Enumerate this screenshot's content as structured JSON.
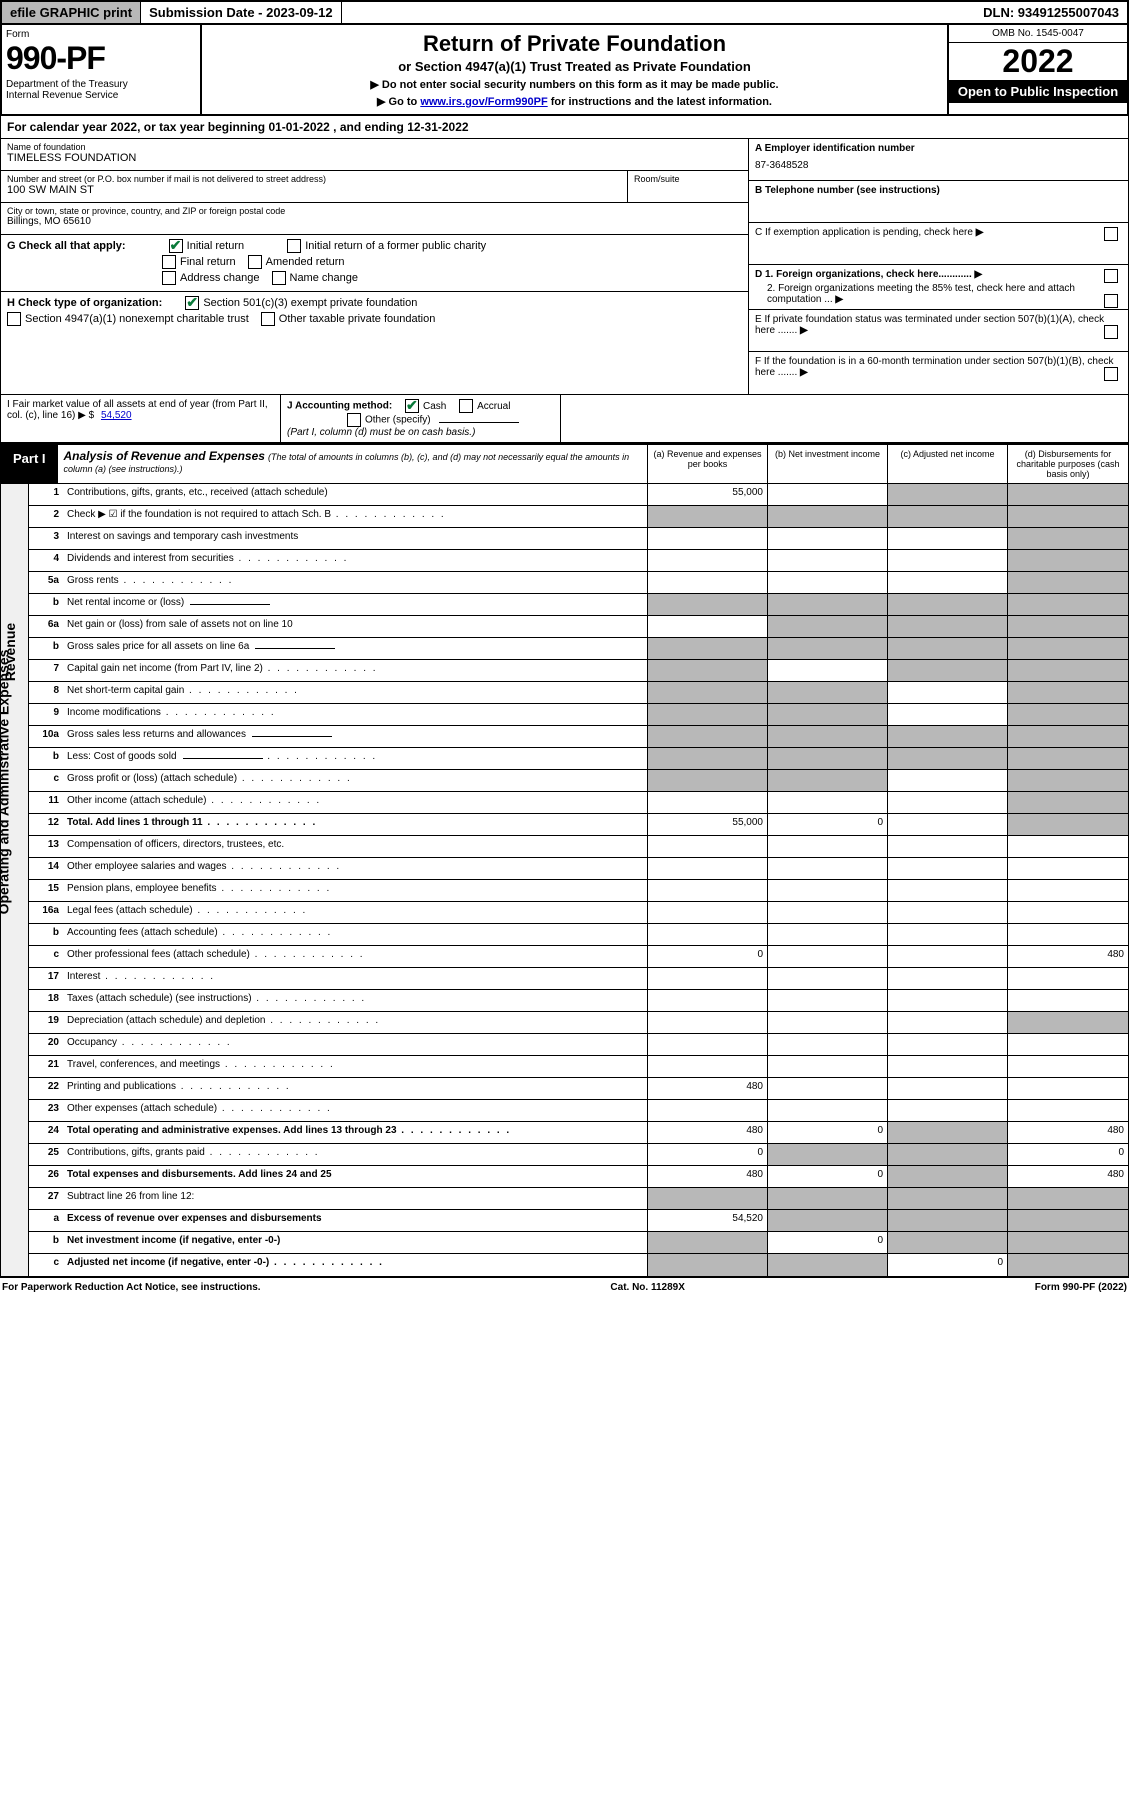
{
  "topbar": {
    "efile": "efile GRAPHIC print",
    "submission": "Submission Date - 2023-09-12",
    "dln": "DLN: 93491255007043"
  },
  "header": {
    "form_label": "Form",
    "form_number": "990-PF",
    "dept": "Department of the Treasury\nInternal Revenue Service",
    "title": "Return of Private Foundation",
    "subtitle": "or Section 4947(a)(1) Trust Treated as Private Foundation",
    "instr1": "▶ Do not enter social security numbers on this form as it may be made public.",
    "instr2_pre": "▶ Go to ",
    "instr2_link": "www.irs.gov/Form990PF",
    "instr2_post": " for instructions and the latest information.",
    "omb": "OMB No. 1545-0047",
    "year": "2022",
    "open_pub": "Open to Public Inspection"
  },
  "cal_year": {
    "pre": "For calendar year 2022, or tax year beginning ",
    "begin": "01-01-2022",
    "mid": " , and ending ",
    "end": "12-31-2022"
  },
  "info": {
    "name_label": "Name of foundation",
    "name": "TIMELESS FOUNDATION",
    "addr_label": "Number and street (or P.O. box number if mail is not delivered to street address)",
    "addr": "100 SW MAIN ST",
    "room_label": "Room/suite",
    "city_label": "City or town, state or province, country, and ZIP or foreign postal code",
    "city": "Billings, MO  65610",
    "A_label": "A Employer identification number",
    "A_val": "87-3648528",
    "B_label": "B Telephone number (see instructions)",
    "C_label": "C If exemption application is pending, check here",
    "D1_label": "D 1. Foreign organizations, check here............",
    "D2_label": "2. Foreign organizations meeting the 85% test, check here and attach computation ...",
    "E_label": "E  If private foundation status was terminated under section 507(b)(1)(A), check here .......",
    "F_label": "F  If the foundation is in a 60-month termination under section 507(b)(1)(B), check here .......",
    "G_label": "G Check all that apply:",
    "G_opts": [
      "Initial return",
      "Initial return of a former public charity",
      "Final return",
      "Amended return",
      "Address change",
      "Name change"
    ],
    "H_label": "H Check type of organization:",
    "H_opts": [
      "Section 501(c)(3) exempt private foundation",
      "Section 4947(a)(1) nonexempt charitable trust",
      "Other taxable private foundation"
    ],
    "I_label": "I Fair market value of all assets at end of year (from Part II, col. (c), line 16) ▶ $",
    "I_val": "54,520",
    "J_label": "J Accounting method:",
    "J_opts": [
      "Cash",
      "Accrual",
      "Other (specify)"
    ],
    "J_note": "(Part I, column (d) must be on cash basis.)"
  },
  "part1": {
    "label": "Part I",
    "title": "Analysis of Revenue and Expenses",
    "sub": "(The total of amounts in columns (b), (c), and (d) may not necessarily equal the amounts in column (a) (see instructions).)",
    "col_a": "(a) Revenue and expenses per books",
    "col_b": "(b) Net investment income",
    "col_c": "(c) Adjusted net income",
    "col_d": "(d) Disbursements for charitable purposes (cash basis only)"
  },
  "rows": [
    {
      "n": "1",
      "d": "Contributions, gifts, grants, etc., received (attach schedule)",
      "a": "55,000",
      "sh": [
        "",
        "",
        "c",
        "d"
      ]
    },
    {
      "n": "2",
      "d": "Check ▶ ☑ if the foundation is not required to attach Sch. B",
      "dots": true,
      "sh": [
        "a",
        "b",
        "c",
        "d"
      ],
      "allshade": true
    },
    {
      "n": "3",
      "d": "Interest on savings and temporary cash investments",
      "sh": [
        "",
        "",
        "",
        "d"
      ]
    },
    {
      "n": "4",
      "d": "Dividends and interest from securities",
      "dots": true,
      "sh": [
        "",
        "",
        "",
        "d"
      ]
    },
    {
      "n": "5a",
      "d": "Gross rents",
      "dots": true,
      "sh": [
        "",
        "",
        "",
        "d"
      ]
    },
    {
      "n": "b",
      "d": "Net rental income or (loss)",
      "sub": true,
      "sh": [
        "a",
        "b",
        "c",
        "d"
      ],
      "allshade": true
    },
    {
      "n": "6a",
      "d": "Net gain or (loss) from sale of assets not on line 10",
      "sh": [
        "",
        "b",
        "c",
        "d"
      ]
    },
    {
      "n": "b",
      "d": "Gross sales price for all assets on line 6a",
      "sub": true,
      "sh": [
        "a",
        "b",
        "c",
        "d"
      ],
      "allshade": true
    },
    {
      "n": "7",
      "d": "Capital gain net income (from Part IV, line 2)",
      "dots": true,
      "sh": [
        "a",
        "",
        "c",
        "d"
      ]
    },
    {
      "n": "8",
      "d": "Net short-term capital gain",
      "dots": true,
      "sh": [
        "a",
        "b",
        "",
        "d"
      ]
    },
    {
      "n": "9",
      "d": "Income modifications",
      "dots": true,
      "sh": [
        "a",
        "b",
        "",
        "d"
      ]
    },
    {
      "n": "10a",
      "d": "Gross sales less returns and allowances",
      "sub": true,
      "sh": [
        "a",
        "b",
        "c",
        "d"
      ],
      "allshade": true
    },
    {
      "n": "b",
      "d": "Less: Cost of goods sold",
      "dots": true,
      "sub": true,
      "sh": [
        "a",
        "b",
        "c",
        "d"
      ],
      "allshade": true
    },
    {
      "n": "c",
      "d": "Gross profit or (loss) (attach schedule)",
      "dots": true,
      "sh": [
        "a",
        "b",
        "",
        "d"
      ]
    },
    {
      "n": "11",
      "d": "Other income (attach schedule)",
      "dots": true,
      "sh": [
        "",
        "",
        "",
        "d"
      ]
    },
    {
      "n": "12",
      "d": "Total. Add lines 1 through 11",
      "dots": true,
      "bold": true,
      "a": "55,000",
      "b": "0",
      "sh": [
        "",
        "",
        "",
        "d"
      ]
    },
    {
      "n": "13",
      "d": "Compensation of officers, directors, trustees, etc.",
      "sh": [
        "",
        "",
        "",
        ""
      ]
    },
    {
      "n": "14",
      "d": "Other employee salaries and wages",
      "dots": true,
      "sh": [
        "",
        "",
        "",
        ""
      ]
    },
    {
      "n": "15",
      "d": "Pension plans, employee benefits",
      "dots": true,
      "sh": [
        "",
        "",
        "",
        ""
      ]
    },
    {
      "n": "16a",
      "d": "Legal fees (attach schedule)",
      "dots": true,
      "sh": [
        "",
        "",
        "",
        ""
      ]
    },
    {
      "n": "b",
      "d": "Accounting fees (attach schedule)",
      "dots": true,
      "sh": [
        "",
        "",
        "",
        ""
      ]
    },
    {
      "n": "c",
      "d": "Other professional fees (attach schedule)",
      "dots": true,
      "a": "0",
      "d4": "480",
      "sh": [
        "",
        "",
        "",
        ""
      ]
    },
    {
      "n": "17",
      "d": "Interest",
      "dots": true,
      "sh": [
        "",
        "",
        "",
        ""
      ]
    },
    {
      "n": "18",
      "d": "Taxes (attach schedule) (see instructions)",
      "dots": true,
      "sh": [
        "",
        "",
        "",
        ""
      ]
    },
    {
      "n": "19",
      "d": "Depreciation (attach schedule) and depletion",
      "dots": true,
      "sh": [
        "",
        "",
        "",
        "d"
      ]
    },
    {
      "n": "20",
      "d": "Occupancy",
      "dots": true,
      "sh": [
        "",
        "",
        "",
        ""
      ]
    },
    {
      "n": "21",
      "d": "Travel, conferences, and meetings",
      "dots": true,
      "sh": [
        "",
        "",
        "",
        ""
      ]
    },
    {
      "n": "22",
      "d": "Printing and publications",
      "dots": true,
      "a": "480",
      "sh": [
        "",
        "",
        "",
        ""
      ]
    },
    {
      "n": "23",
      "d": "Other expenses (attach schedule)",
      "dots": true,
      "sh": [
        "",
        "",
        "",
        ""
      ]
    },
    {
      "n": "24",
      "d": "Total operating and administrative expenses. Add lines 13 through 23",
      "dots": true,
      "bold": true,
      "a": "480",
      "b": "0",
      "d4": "480",
      "sh": [
        "",
        "",
        "c",
        ""
      ]
    },
    {
      "n": "25",
      "d": "Contributions, gifts, grants paid",
      "dots": true,
      "a": "0",
      "d4": "0",
      "sh": [
        "",
        "b",
        "c",
        ""
      ]
    },
    {
      "n": "26",
      "d": "Total expenses and disbursements. Add lines 24 and 25",
      "bold": true,
      "a": "480",
      "b": "0",
      "d4": "480",
      "sh": [
        "",
        "",
        "c",
        ""
      ]
    },
    {
      "n": "27",
      "d": "Subtract line 26 from line 12:",
      "sh": [
        "a",
        "b",
        "c",
        "d"
      ],
      "allshade": true
    },
    {
      "n": "a",
      "d": "Excess of revenue over expenses and disbursements",
      "bold": true,
      "a": "54,520",
      "sh": [
        "",
        "b",
        "c",
        "d"
      ]
    },
    {
      "n": "b",
      "d": "Net investment income (if negative, enter -0-)",
      "bold": true,
      "b": "0",
      "sh": [
        "a",
        "",
        "c",
        "d"
      ]
    },
    {
      "n": "c",
      "d": "Adjusted net income (if negative, enter -0-)",
      "dots": true,
      "bold": true,
      "c": "0",
      "sh": [
        "a",
        "b",
        "",
        "d"
      ]
    }
  ],
  "footer": {
    "left": "For Paperwork Reduction Act Notice, see instructions.",
    "mid": "Cat. No. 11289X",
    "right": "Form 990-PF (2022)"
  }
}
